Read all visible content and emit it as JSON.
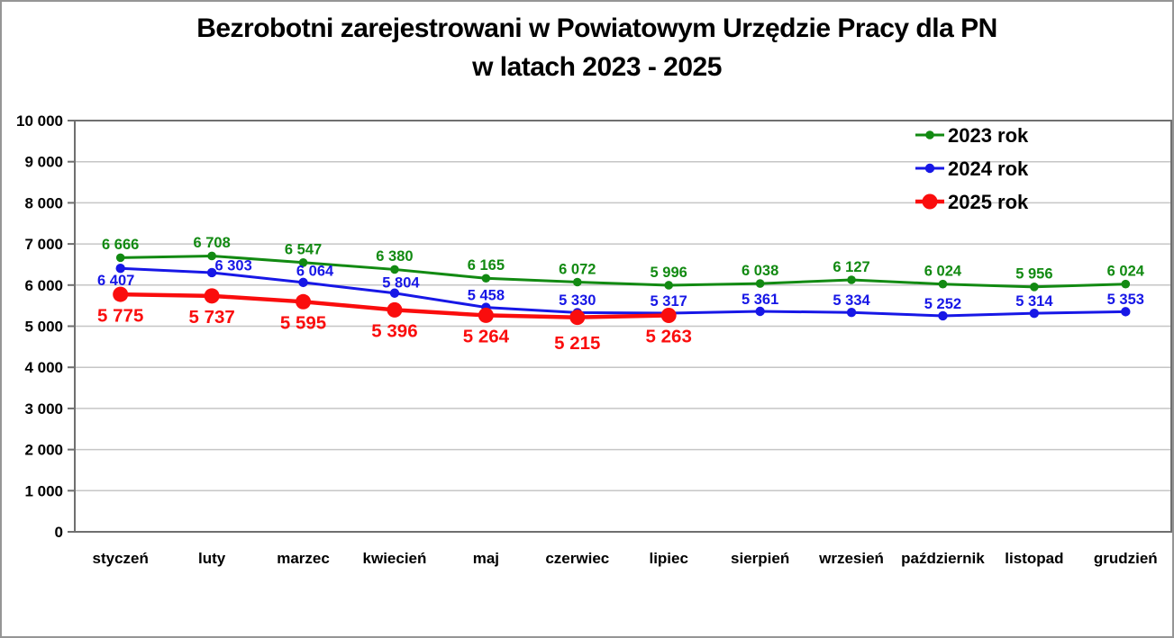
{
  "title": {
    "line1": "Bezrobotni zarejestrowani w Powiatowym Urzędzie Pracy dla PN",
    "line2": "w latach 2023 - 2025"
  },
  "y_axis": {
    "tick_labels": [
      "10 000",
      "9 000",
      "8 000",
      "7 000",
      "6 000",
      "5 000",
      "4 000",
      "3 000",
      "2 000",
      "1 000",
      "0"
    ]
  },
  "chart_data": {
    "type": "line",
    "title": "Bezrobotni zarejestrowani w Powiatowym Urzędzie Pracy dla PN w latach 2023 - 2025",
    "categories": [
      "styczeń",
      "luty",
      "marzec",
      "kwiecień",
      "maj",
      "czerwiec",
      "lipiec",
      "sierpień",
      "wrzesień",
      "październik",
      "listopad",
      "grudzień"
    ],
    "series": [
      {
        "name": "2023 rok",
        "color": "#128A12",
        "values": [
          6666,
          6708,
          6547,
          6380,
          6165,
          6072,
          5996,
          6038,
          6127,
          6024,
          5956,
          6024
        ]
      },
      {
        "name": "2024 rok",
        "color": "#1717E6",
        "values": [
          6407,
          6303,
          6064,
          5804,
          5458,
          5330,
          5317,
          5361,
          5334,
          5252,
          5314,
          5353
        ]
      },
      {
        "name": "2025 rok",
        "color": "#FA0D0D",
        "values": [
          5775,
          5737,
          5595,
          5396,
          5264,
          5215,
          5263
        ]
      }
    ],
    "xlabel": "",
    "ylabel": "",
    "ylim": [
      0,
      10000
    ],
    "ytick_step": 1000,
    "grid": "horizontal",
    "legend_position": "top-right-inside",
    "data_labels": true
  },
  "colors": {
    "background": "#FFFFFF",
    "frame_border": "#959595",
    "gridline": "#C6C6C6",
    "axis": "#6F6F6F",
    "text": "#000000"
  }
}
